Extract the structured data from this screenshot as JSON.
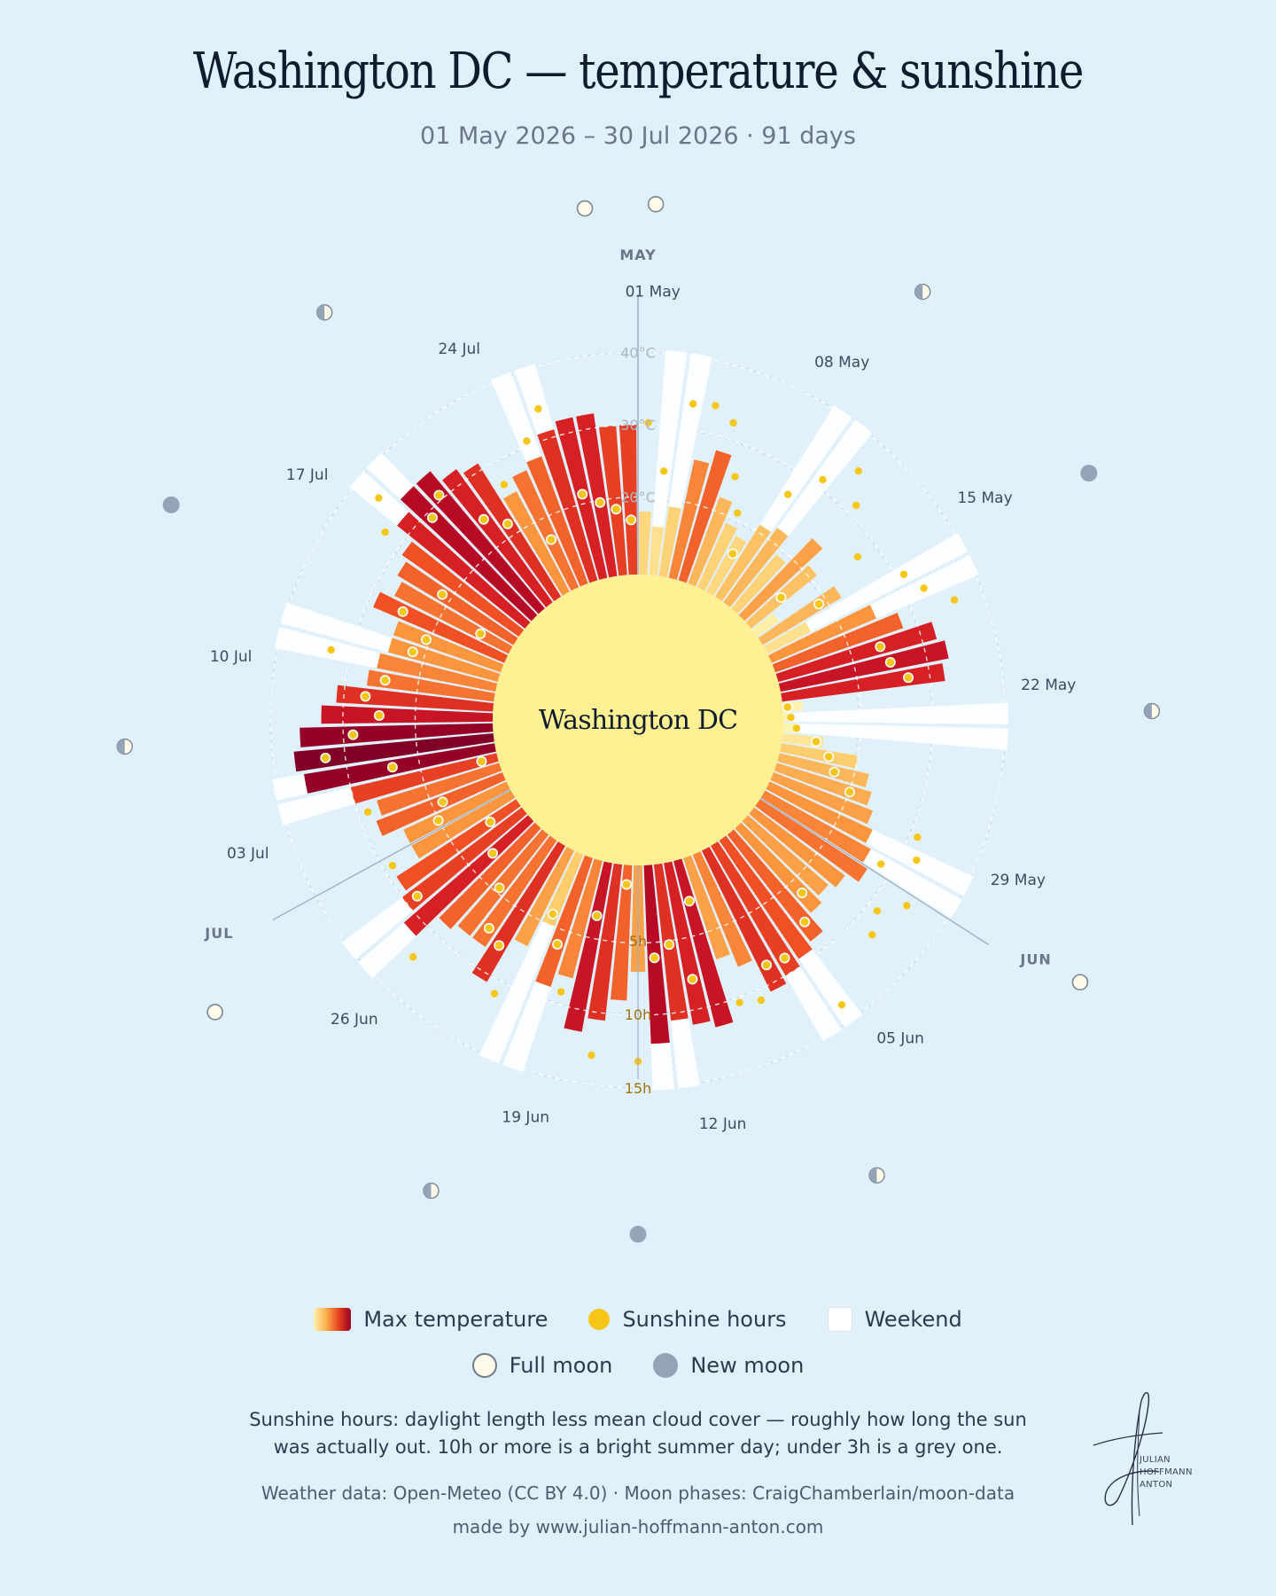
{
  "title": "Washington DC — temperature & sunshine",
  "subtitle": "01 May 2026 – 30 Jul 2026 · 91 days",
  "center_label": "Washington DC",
  "legend": {
    "max_temp": "Max temperature",
    "sunshine": "Sunshine hours",
    "weekend": "Weekend",
    "full_moon": "Full moon",
    "new_moon": "New moon"
  },
  "note": "Sunshine hours: daylight length less mean cloud cover — roughly how long the sun was actually out. 10h or more is a bright summer day; under 3h is a grey one.",
  "credit_sources": "Weather data: Open-Meteo (CC BY 4.0) · Moon phases: CraigChamberlain/moon-data",
  "credit_made_by": "made by www.julian-hoffmann-anton.com",
  "signature_lines": [
    "JULIAN",
    "HOFFMANN",
    "ANTON"
  ],
  "colors": {
    "background": "#e1f1fc",
    "sun_disk": "#fff193",
    "sunshine_dot": "#f6c619",
    "weekend_bar": "#ffffff",
    "new_moon": "#94a3b8",
    "full_moon": "#fffbe8"
  },
  "chart_data": {
    "type": "radial-bar",
    "start_date": "2026-05-01",
    "days": 91,
    "series": [
      "Max temperature",
      "Sunshine hours"
    ],
    "temp_axis_ticks": [
      "20°C",
      "30°C",
      "40°C"
    ],
    "sun_axis_ticks": [
      "5h",
      "10h",
      "15h"
    ],
    "date_labels": [
      "01 May",
      "08 May",
      "15 May",
      "22 May",
      "29 May",
      "05 Jun",
      "12 Jun",
      "19 Jun",
      "26 Jun",
      "03 Jul",
      "10 Jul",
      "17 Jul",
      "24 Jul"
    ],
    "month_labels": [
      {
        "label": "MAY",
        "day_index": 0
      },
      {
        "label": "JUN",
        "day_index": 31
      },
      {
        "label": "JUL",
        "day_index": 61
      }
    ],
    "max_temp_c": [
      18,
      16,
      19,
      26,
      28,
      22,
      19,
      18,
      21,
      22,
      19,
      24,
      21,
      13,
      22,
      16,
      25,
      28,
      32,
      33,
      32,
      12,
      10,
      11,
      15,
      20,
      22,
      23,
      24,
      25,
      26,
      27,
      25,
      24,
      25,
      28,
      29,
      30,
      31,
      26,
      24,
      33,
      32,
      31,
      34,
      24,
      28,
      31,
      33,
      26,
      28,
      20,
      24,
      31,
      27,
      27,
      28,
      32,
      30,
      29,
      25,
      25,
      28,
      27,
      30,
      36,
      37,
      36,
      33,
      31,
      27,
      26,
      25,
      25,
      29,
      27,
      28,
      29,
      32,
      34,
      34,
      32,
      31,
      25,
      27,
      28,
      31,
      32,
      32,
      30,
      30
    ],
    "sunshine_h": [
      10.2,
      7.0,
      11.8,
      12.0,
      11.2,
      7.8,
      5.6,
      3.0,
      8.4,
      10.6,
      12.6,
      10.8,
      2.8,
      8.6,
      4.6,
      10.6,
      11.4,
      13.0,
      7.2,
      7.6,
      8.6,
      0.2,
      0.4,
      0.8,
      2.2,
      3.2,
      3.8,
      5.2,
      10.6,
      11.2,
      9.2,
      12.2,
      10.8,
      11.6,
      6.2,
      7.8,
      13.8,
      9.0,
      8.8,
      10.8,
      10.4,
      2.8,
      8.0,
      5.4,
      6.2,
      13.2,
      1.2,
      13.0,
      3.6,
      9.2,
      6.2,
      4.4,
      11.0,
      8.0,
      7.4,
      4.8,
      12.2,
      3.4,
      9.2,
      2.2,
      9.4,
      5.2,
      4.4,
      9.4,
      1.0,
      7.0,
      11.4,
      9.4,
      7.6,
      8.6,
      7.4,
      11.4,
      6.0,
      5.4,
      7.6,
      2.2,
      5.8,
      11.4,
      13.2,
      9.6,
      10.4,
      7.2,
      6.0,
      8.4,
      3.6,
      10.4,
      12.2,
      5.8,
      5.0,
      4.4,
      3.6
    ],
    "weekends": [
      "2026-05-02",
      "2026-05-03",
      "2026-05-09",
      "2026-05-10",
      "2026-05-16",
      "2026-05-17",
      "2026-05-23",
      "2026-05-24",
      "2026-05-30",
      "2026-05-31",
      "2026-06-06",
      "2026-06-07",
      "2026-06-13",
      "2026-06-14",
      "2026-06-20",
      "2026-06-21",
      "2026-06-27",
      "2026-06-28",
      "2026-07-04",
      "2026-07-05",
      "2026-07-11",
      "2026-07-12",
      "2026-07-18",
      "2026-07-19",
      "2026-07-25",
      "2026-07-26"
    ],
    "full_moons": [
      "2026-05-01",
      "2026-05-31",
      "2026-06-29",
      "2026-07-29"
    ],
    "new_moons": [
      "2026-05-16",
      "2026-06-15",
      "2026-07-14"
    ],
    "quarter_moons": [
      "2026-05-09",
      "2026-05-23",
      "2026-06-08",
      "2026-06-21",
      "2026-07-07",
      "2026-07-21"
    ]
  }
}
